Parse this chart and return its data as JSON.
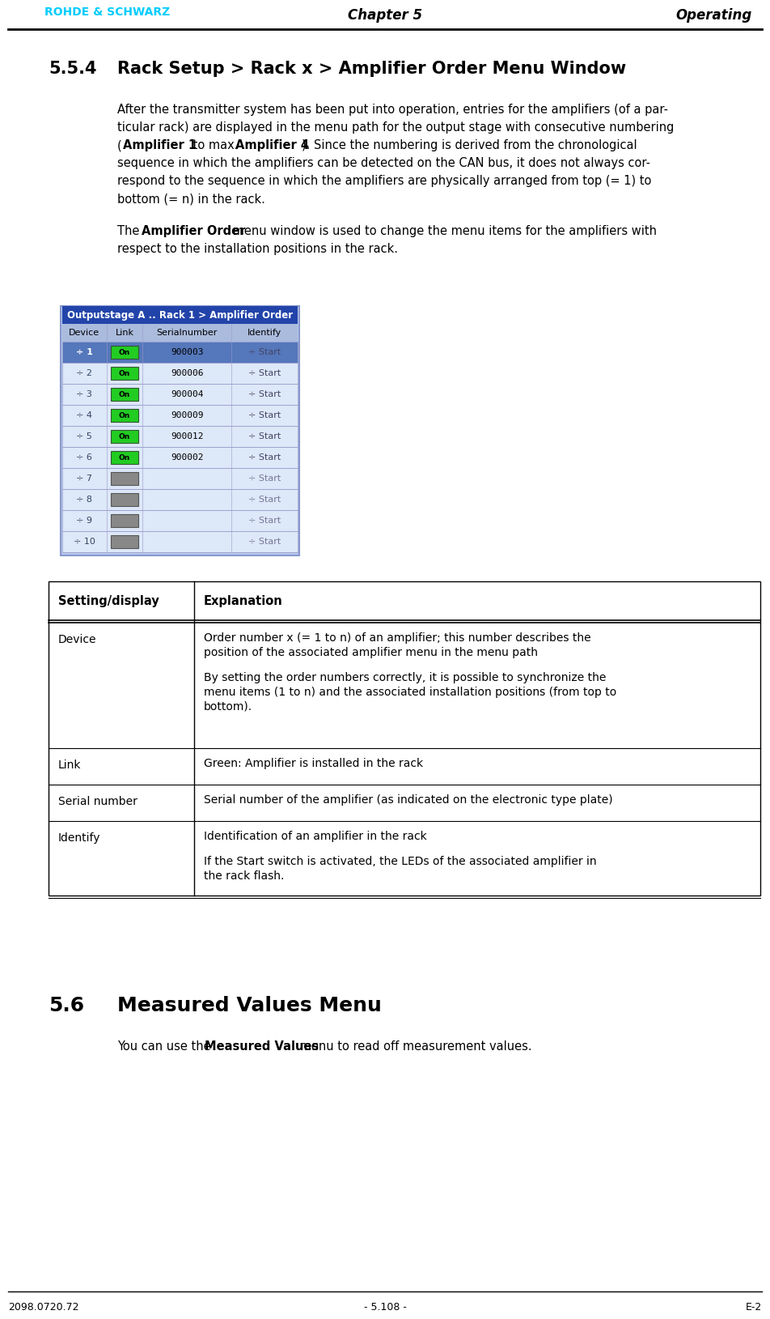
{
  "page_width": 9.52,
  "page_height": 16.29,
  "dpi": 100,
  "background_color": "#ffffff",
  "header": {
    "logo_text": "ROHDE & SCHWARZ",
    "logo_color": "#00ccff",
    "chapter_text": "Chapter 5",
    "operating_text": "Operating"
  },
  "footer": {
    "left_text": "2098.0720.72",
    "center_text": "- 5.108 -",
    "right_text": "E-2"
  },
  "section_554": {
    "number": "5.5.4",
    "title": "Rack Setup > Rack x > Amplifier Order Menu Window"
  },
  "screenshot": {
    "header_text": "Outputstage A .. Rack 1 > Amplifier Order",
    "header_bg": "#2244aa",
    "header_fg": "#ffffff",
    "col_headers": [
      "Device",
      "Link",
      "Serialnumber",
      "Identify"
    ],
    "col_header_bg": "#aabbdd",
    "table_outer_bg": "#aabbdd",
    "table_bg_active": "#dde8f8",
    "table_bg_inactive": "#dde8f8",
    "table_bg_first": "#5577bb",
    "rows": [
      {
        "device": "1",
        "link_active": true,
        "link_color": "#22cc22",
        "serial": "900003",
        "active": true
      },
      {
        "device": "2",
        "link_active": true,
        "link_color": "#22cc22",
        "serial": "900006",
        "active": true
      },
      {
        "device": "3",
        "link_active": true,
        "link_color": "#22cc22",
        "serial": "900004",
        "active": true
      },
      {
        "device": "4",
        "link_active": true,
        "link_color": "#22cc22",
        "serial": "900009",
        "active": true
      },
      {
        "device": "5",
        "link_active": true,
        "link_color": "#22cc22",
        "serial": "900012",
        "active": true
      },
      {
        "device": "6",
        "link_active": true,
        "link_color": "#22cc22",
        "serial": "900002",
        "active": true
      },
      {
        "device": "7",
        "link_active": false,
        "link_color": "#888888",
        "serial": "",
        "active": false
      },
      {
        "device": "8",
        "link_active": false,
        "link_color": "#888888",
        "serial": "",
        "active": false
      },
      {
        "device": "9",
        "link_active": false,
        "link_color": "#888888",
        "serial": "",
        "active": false
      },
      {
        "device": "10",
        "link_active": false,
        "link_color": "#888888",
        "serial": "",
        "active": false
      }
    ]
  },
  "section_56": {
    "number": "5.6",
    "title": "Measured Values Menu"
  }
}
